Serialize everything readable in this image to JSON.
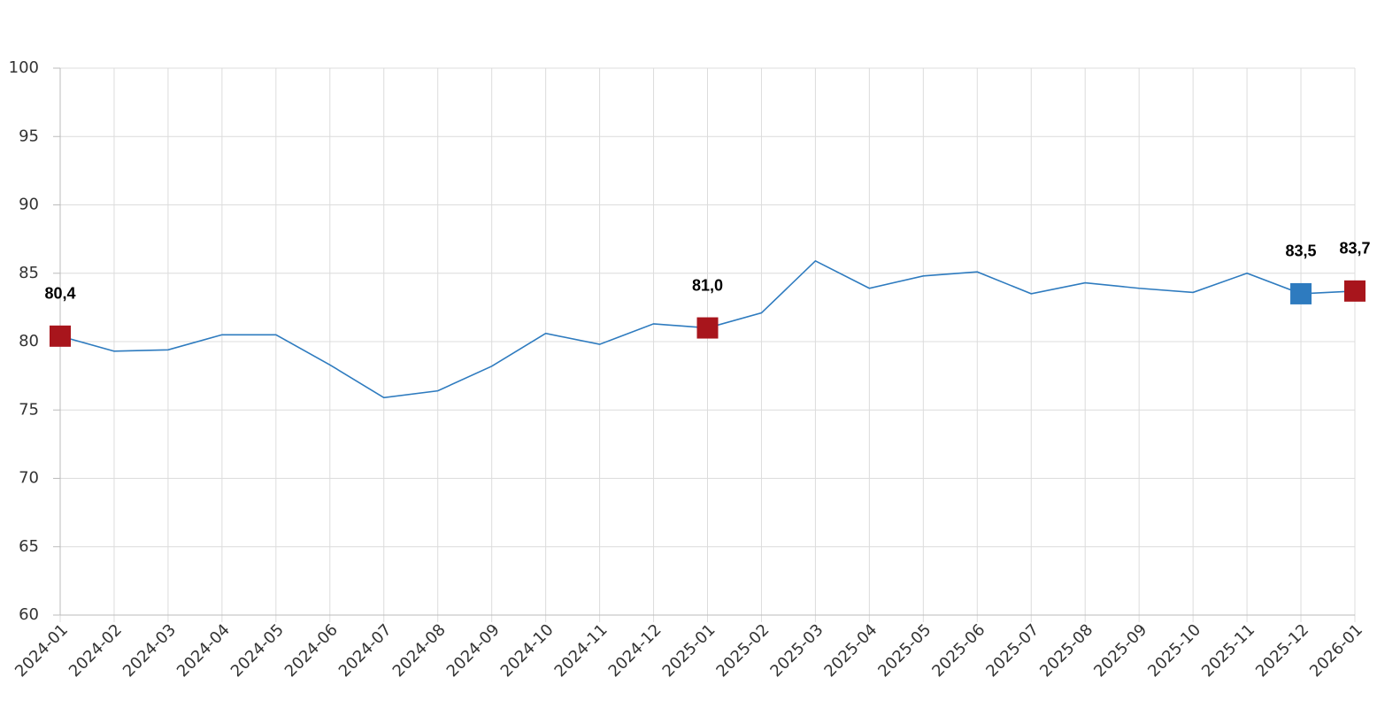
{
  "chart_data": {
    "type": "line",
    "categories": [
      "2024-01",
      "2024-02",
      "2024-03",
      "2024-04",
      "2024-05",
      "2024-06",
      "2024-07",
      "2024-08",
      "2024-09",
      "2024-10",
      "2024-11",
      "2024-12",
      "2025-01",
      "2025-02",
      "2025-03",
      "2025-04",
      "2025-05",
      "2025-06",
      "2025-07",
      "2025-08",
      "2025-09",
      "2025-10",
      "2025-11",
      "2025-12",
      "2026-01"
    ],
    "series": [
      {
        "color": "#2e7bbf",
        "values": [
          80.4,
          79.3,
          79.4,
          80.5,
          80.5,
          78.3,
          75.9,
          76.4,
          78.2,
          80.6,
          79.8,
          81.3,
          81.0,
          82.1,
          85.9,
          83.9,
          84.8,
          85.1,
          83.5,
          84.3,
          83.9,
          83.6,
          85.0,
          83.5,
          83.7
        ],
        "value_labels": [
          "80,4",
          null,
          null,
          null,
          null,
          null,
          null,
          null,
          null,
          null,
          null,
          null,
          "81,0",
          null,
          null,
          null,
          null,
          null,
          null,
          null,
          null,
          null,
          null,
          "83,5",
          "83,7"
        ],
        "marker_colors": [
          "#a8151c",
          null,
          null,
          null,
          null,
          null,
          null,
          null,
          null,
          null,
          null,
          null,
          "#a8151c",
          null,
          null,
          null,
          null,
          null,
          null,
          null,
          null,
          null,
          null,
          "#2e7bbf",
          "#a8151c"
        ]
      }
    ],
    "ylim": [
      60,
      100
    ],
    "yticks": [
      60,
      65,
      70,
      75,
      80,
      85,
      90,
      95,
      100
    ],
    "grid": true
  }
}
